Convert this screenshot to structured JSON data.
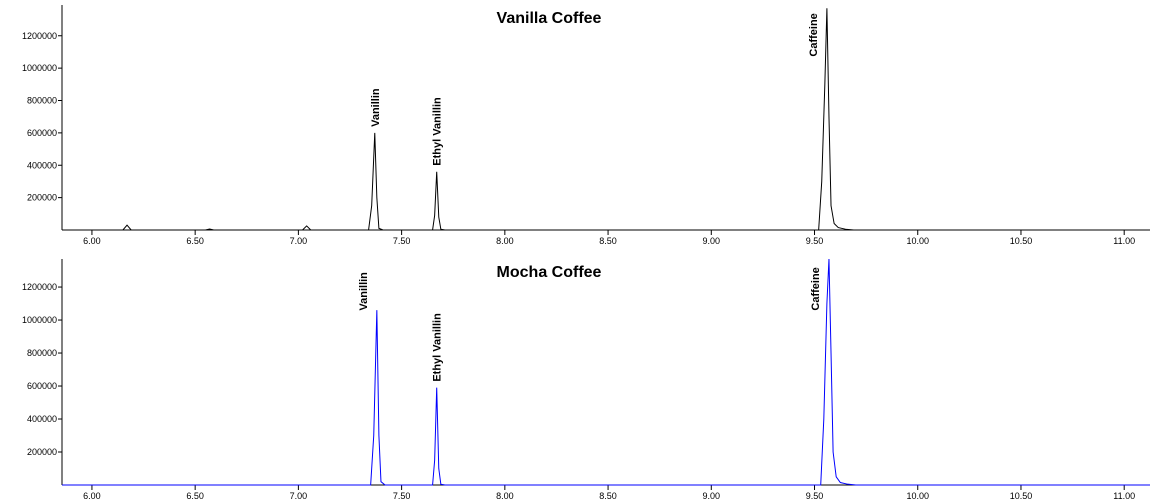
{
  "chart_data": [
    {
      "type": "line",
      "title": "Vanilla Coffee",
      "color": "#000000",
      "x": [
        5.855,
        6.15,
        6.17,
        6.19,
        6.55,
        6.57,
        6.59,
        7.02,
        7.04,
        7.06,
        7.34,
        7.355,
        7.37,
        7.38,
        7.39,
        7.41,
        7.65,
        7.66,
        7.67,
        7.68,
        7.69,
        7.71,
        9.52,
        9.535,
        9.55,
        9.56,
        9.57,
        9.58,
        9.595,
        9.615,
        9.65,
        9.69,
        11.125
      ],
      "values": [
        0,
        0,
        30000,
        0,
        0,
        6000,
        0,
        0,
        25000,
        0,
        0,
        150000,
        600000,
        200000,
        10000,
        0,
        0,
        90000,
        360000,
        80000,
        5000,
        0,
        0,
        300000,
        900000,
        1370000,
        700000,
        150000,
        40000,
        15000,
        5000,
        0,
        0
      ],
      "annotations": [
        {
          "text": "Vanillin",
          "x": 7.37
        },
        {
          "text": "Ethyl Vanillin",
          "x": 7.67
        },
        {
          "text": "Caffeine",
          "x": 9.56
        }
      ],
      "xlim": [
        5.855,
        11.125
      ],
      "xticks": [
        {
          "value": 6,
          "label": "6.00"
        },
        {
          "value": 6.5,
          "label": "6.50"
        },
        {
          "value": 7,
          "label": "7.00"
        },
        {
          "value": 7.5,
          "label": "7.50"
        },
        {
          "value": 8,
          "label": "8.00"
        },
        {
          "value": 8.5,
          "label": "8.50"
        },
        {
          "value": 9,
          "label": "9.00"
        },
        {
          "value": 9.5,
          "label": "9.50"
        },
        {
          "value": 10,
          "label": "10.00"
        },
        {
          "value": 10.5,
          "label": "10.50"
        },
        {
          "value": 11,
          "label": "11.00"
        }
      ],
      "ylim": [
        0,
        1390000
      ],
      "yticks": [
        200000,
        400000,
        600000,
        800000,
        1000000,
        1200000
      ]
    },
    {
      "type": "line",
      "title": "Mocha Coffee",
      "color": "#0000ff",
      "x": [
        5.855,
        7.35,
        7.365,
        7.38,
        7.39,
        7.4,
        7.42,
        7.65,
        7.66,
        7.67,
        7.68,
        7.69,
        7.71,
        9.53,
        9.545,
        9.56,
        9.57,
        9.58,
        9.59,
        9.605,
        9.625,
        9.66,
        9.7,
        11.125
      ],
      "values": [
        0,
        0,
        300000,
        1060000,
        300000,
        20000,
        0,
        0,
        150000,
        590000,
        100000,
        5000,
        0,
        0,
        400000,
        1100000,
        1370000,
        800000,
        200000,
        50000,
        15000,
        5000,
        0,
        0
      ],
      "annotations": [
        {
          "text": "Vanillin",
          "x": 7.38
        },
        {
          "text": "Ethyl Vanillin",
          "x": 7.67
        },
        {
          "text": "Caffeine",
          "x": 9.57
        }
      ],
      "xlim": [
        5.855,
        11.125
      ],
      "xticks": [
        {
          "value": 6,
          "label": "6.00"
        },
        {
          "value": 6.5,
          "label": "6.50"
        },
        {
          "value": 7,
          "label": "7.00"
        },
        {
          "value": 7.5,
          "label": "7.50"
        },
        {
          "value": 8,
          "label": "8.00"
        },
        {
          "value": 8.5,
          "label": "8.50"
        },
        {
          "value": 9,
          "label": "9.00"
        },
        {
          "value": 9.5,
          "label": "9.50"
        },
        {
          "value": 10,
          "label": "10.00"
        },
        {
          "value": 10.5,
          "label": "10.50"
        },
        {
          "value": 11,
          "label": "11.00"
        }
      ],
      "ylim": [
        0,
        1370000
      ],
      "yticks": [
        200000,
        400000,
        600000,
        800000,
        1000000,
        1200000
      ]
    }
  ]
}
